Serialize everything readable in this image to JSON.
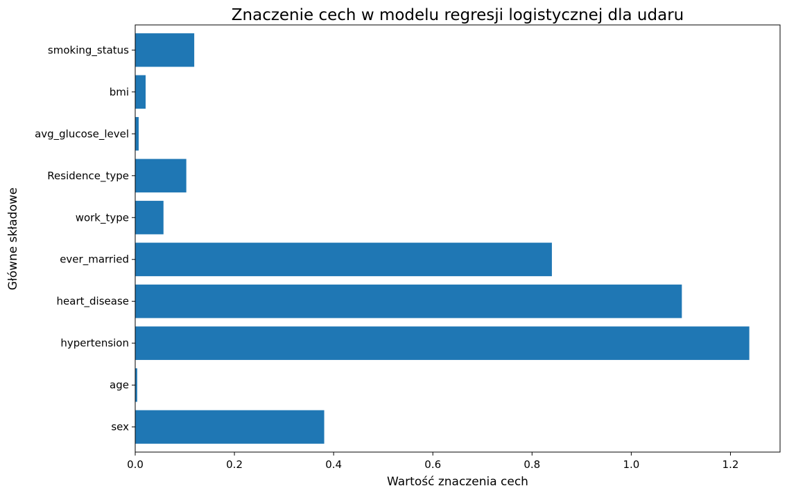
{
  "chart_data": {
    "type": "bar",
    "orientation": "horizontal",
    "title": "Znaczenie cech w modelu regresji logistycznej dla udaru",
    "xlabel": "Wartość znaczenia cech",
    "ylabel": "Główne składowe",
    "categories": [
      "sex",
      "age",
      "hypertension",
      "heart_disease",
      "ever_married",
      "work_type",
      "Residence_type",
      "avg_glucose_level",
      "bmi",
      "smoking_status"
    ],
    "values": [
      0.381,
      0.004,
      1.238,
      1.102,
      0.84,
      0.057,
      0.103,
      0.007,
      0.021,
      0.119
    ],
    "xticks": [
      0.0,
      0.2,
      0.4,
      0.6,
      0.8,
      1.0,
      1.2
    ],
    "xtick_labels": [
      "0.0",
      "0.2",
      "0.4",
      "0.6",
      "0.8",
      "1.0",
      "1.2"
    ],
    "xlim": [
      0,
      1.3
    ],
    "grid": false,
    "color": "#1f77b4"
  }
}
